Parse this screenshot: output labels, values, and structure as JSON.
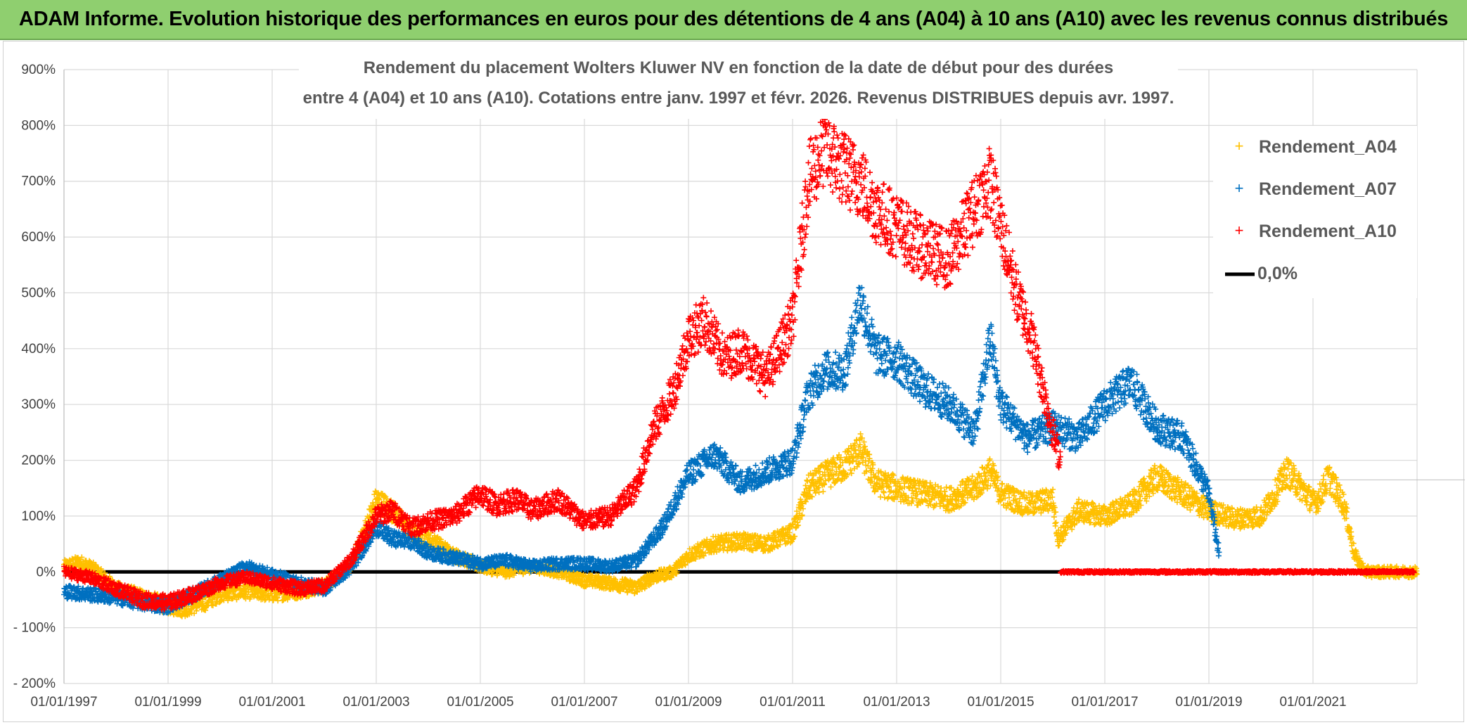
{
  "banner": {
    "title": "ADAM Informe. Evolution historique des performances en euros pour des détentions de 4 ans (A04) à 10 ans (A10) avec les revenus connus distribués"
  },
  "colors": {
    "banner_bg": "#8fcf6f",
    "A04": "#ffc000",
    "A07": "#0070c0",
    "A10": "#ff0000",
    "zero": "#000000"
  },
  "chart_data": {
    "type": "scatter",
    "title_line1": "Rendement du placement Wolters Kluwer NV en fonction de la date de début pour des durées",
    "title_line2": "entre 4 (A04) et 10 ans (A10). Cotations entre janv. 1997 et févr. 2026. Revenus DISTRIBUES depuis avr. 1997.",
    "xlim": [
      "1997-01-01",
      "2023-01-01"
    ],
    "ylim": [
      -200,
      900
    ],
    "y_ticks": [
      "- 200%",
      "- 100%",
      "0%",
      "100%",
      "200%",
      "300%",
      "400%",
      "500%",
      "600%",
      "700%",
      "800%",
      "900%"
    ],
    "x_ticks": [
      "01/01/1997",
      "01/01/1999",
      "01/01/2001",
      "01/01/2003",
      "01/01/2005",
      "01/01/2007",
      "01/01/2009",
      "01/01/2011",
      "01/01/2013",
      "01/01/2015",
      "01/01/2017",
      "01/01/2019",
      "01/01/2021"
    ],
    "legend": [
      "Rendement_A04",
      "Rendement_A07",
      "Rendement_A10",
      "0,0%"
    ],
    "series": [
      {
        "name": "Rendement_A04",
        "unit": "%",
        "x": [
          1997.0,
          1997.3,
          1997.6,
          1998.0,
          1998.5,
          1999.0,
          1999.3,
          1999.7,
          2000.0,
          2000.5,
          2001.0,
          2001.5,
          2002.0,
          2002.5,
          2002.8,
          2003.0,
          2003.3,
          2003.7,
          2004.0,
          2004.5,
          2005.0,
          2005.5,
          2006.0,
          2006.5,
          2007.0,
          2007.5,
          2008.0,
          2008.3,
          2008.7,
          2009.0,
          2009.5,
          2010.0,
          2010.5,
          2011.0,
          2011.3,
          2011.6,
          2012.0,
          2012.3,
          2012.6,
          2013.0,
          2013.5,
          2014.0,
          2014.5,
          2014.8,
          2015.0,
          2015.5,
          2016.0,
          2016.1,
          2016.5,
          2017.0,
          2017.5,
          2018.0,
          2018.5,
          2019.0,
          2019.5,
          2020.0,
          2020.2,
          2020.5,
          2021.0,
          2021.1,
          2021.3,
          2021.6,
          2021.8,
          2022.0,
          2022.5,
          2023.0
        ],
        "y": [
          10,
          18,
          5,
          -30,
          -45,
          -60,
          -65,
          -55,
          -40,
          -35,
          -40,
          -35,
          -25,
          10,
          80,
          130,
          110,
          70,
          60,
          30,
          10,
          0,
          10,
          0,
          -15,
          -20,
          -28,
          -10,
          0,
          30,
          50,
          55,
          50,
          70,
          150,
          170,
          190,
          220,
          160,
          150,
          140,
          130,
          150,
          180,
          140,
          120,
          130,
          60,
          110,
          100,
          120,
          170,
          140,
          110,
          95,
          100,
          130,
          180,
          125,
          130,
          170,
          120,
          30,
          0,
          0,
          0
        ]
      },
      {
        "name": "Rendement_A07",
        "unit": "%",
        "x": [
          1997.0,
          1997.5,
          1998.0,
          1998.5,
          1999.0,
          1999.5,
          2000.0,
          2000.5,
          2001.0,
          2001.5,
          2002.0,
          2002.5,
          2003.0,
          2003.3,
          2003.7,
          2004.0,
          2004.5,
          2005.0,
          2005.5,
          2006.0,
          2006.5,
          2007.0,
          2007.5,
          2008.0,
          2008.5,
          2009.0,
          2009.5,
          2010.0,
          2010.5,
          2011.0,
          2011.3,
          2011.6,
          2012.0,
          2012.3,
          2012.6,
          2013.0,
          2013.5,
          2014.0,
          2014.5,
          2014.8,
          2015.0,
          2015.5,
          2016.0,
          2016.5,
          2017.0,
          2017.5,
          2018.0,
          2018.5,
          2019.0,
          2019.2
        ],
        "y": [
          -35,
          -40,
          -45,
          -55,
          -60,
          -40,
          -15,
          10,
          -5,
          -20,
          -30,
          5,
          80,
          60,
          55,
          35,
          25,
          15,
          20,
          10,
          15,
          15,
          10,
          20,
          80,
          175,
          210,
          160,
          180,
          200,
          320,
          360,
          360,
          490,
          390,
          380,
          330,
          300,
          250,
          420,
          300,
          240,
          260,
          240,
          300,
          340,
          260,
          240,
          140,
          30
        ]
      },
      {
        "name": "Rendement_A10",
        "unit": "%",
        "x": [
          1997.0,
          1997.5,
          1998.0,
          1998.5,
          1999.0,
          1999.5,
          2000.0,
          2000.5,
          2001.0,
          2001.5,
          2002.0,
          2002.5,
          2003.0,
          2003.3,
          2003.7,
          2004.0,
          2004.5,
          2005.0,
          2005.3,
          2005.7,
          2006.0,
          2006.5,
          2007.0,
          2007.5,
          2008.0,
          2008.3,
          2008.7,
          2009.0,
          2009.3,
          2009.7,
          2010.0,
          2010.5,
          2011.0,
          2011.3,
          2011.6,
          2012.0,
          2012.3,
          2012.6,
          2013.0,
          2013.5,
          2014.0,
          2014.5,
          2014.8,
          2015.0,
          2015.3,
          2015.6,
          2016.0,
          2016.15
        ],
        "y": [
          0,
          -10,
          -30,
          -50,
          -55,
          -40,
          -20,
          -10,
          -20,
          -30,
          -25,
          20,
          100,
          110,
          80,
          90,
          100,
          140,
          120,
          130,
          110,
          130,
          90,
          100,
          150,
          250,
          320,
          420,
          450,
          380,
          400,
          350,
          450,
          700,
          760,
          720,
          700,
          650,
          620,
          580,
          560,
          650,
          700,
          620,
          500,
          420,
          250,
          200
        ]
      },
      {
        "name": "0,0%",
        "unit": "%",
        "x": [
          1997.0,
          2023.0
        ],
        "y": [
          0,
          0
        ]
      }
    ]
  }
}
